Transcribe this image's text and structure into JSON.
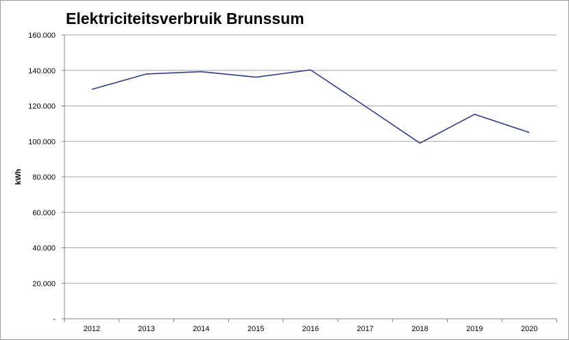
{
  "chart_data": {
    "type": "line",
    "title": "Elektriciteitsverbruik Brunssum",
    "xlabel": "",
    "ylabel": "kWh",
    "categories": [
      "2012",
      "2013",
      "2014",
      "2015",
      "2016",
      "2017",
      "2018",
      "2019",
      "2020"
    ],
    "series": [
      {
        "name": "",
        "values": [
          129300,
          138000,
          139300,
          136200,
          140300,
          119800,
          99000,
          115300,
          105000
        ],
        "color": "#2e3a8c"
      }
    ],
    "ylim": [
      0,
      160000
    ],
    "yticks": [
      {
        "value": 0,
        "label": "-"
      },
      {
        "value": 20000,
        "label": "20.000"
      },
      {
        "value": 40000,
        "label": "40.000"
      },
      {
        "value": 60000,
        "label": "60.000"
      },
      {
        "value": 80000,
        "label": "80.000"
      },
      {
        "value": 100000,
        "label": "100.000"
      },
      {
        "value": 120000,
        "label": "120.000"
      },
      {
        "value": 140000,
        "label": "140.000"
      },
      {
        "value": 160000,
        "label": "160.000"
      }
    ],
    "grid": true,
    "legend": "none"
  }
}
